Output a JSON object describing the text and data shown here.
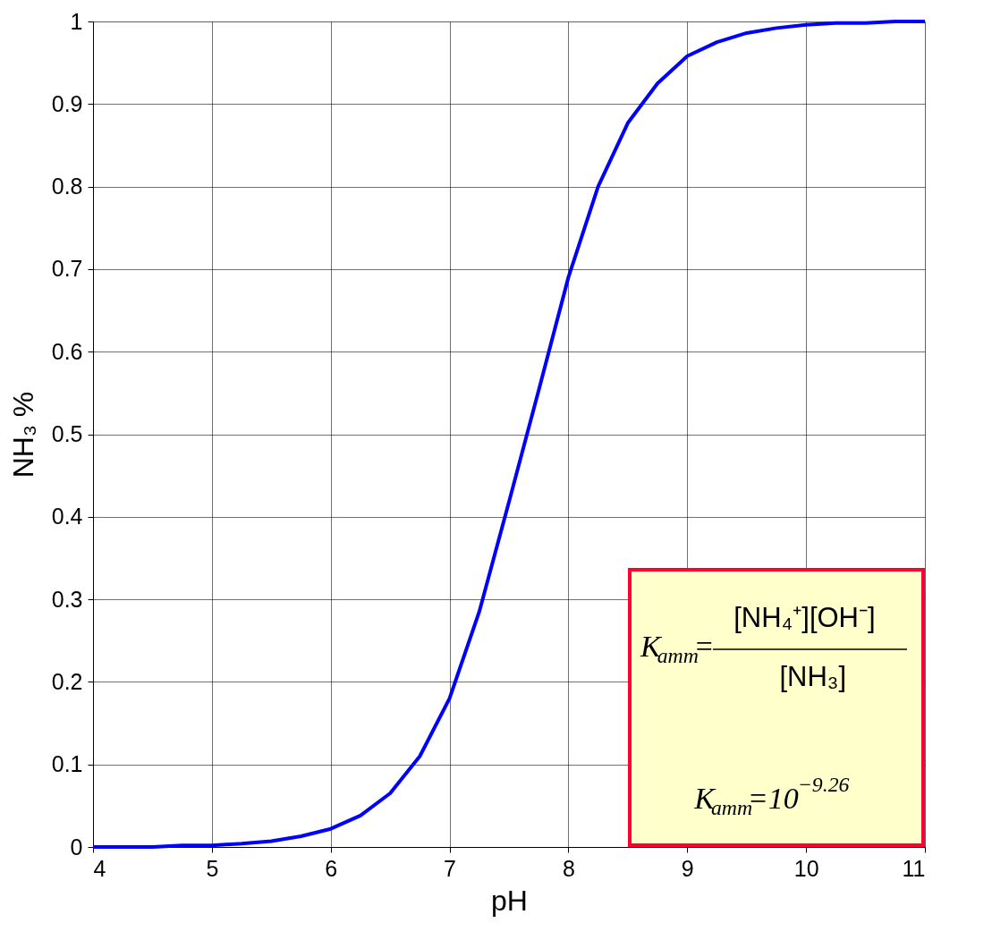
{
  "chart_data": {
    "type": "line",
    "xlabel": "pH",
    "ylabel": "NH₃ %",
    "x": [
      4,
      4.5,
      4.75,
      5.0,
      5.25,
      5.5,
      5.75,
      6.0,
      6.25,
      6.5,
      6.75,
      7.0,
      7.25,
      7.5,
      7.75,
      8.0,
      8.25,
      8.5,
      8.75,
      9.0,
      9.25,
      9.5,
      9.75,
      10.0,
      10.25,
      10.5,
      10.75,
      11
    ],
    "series": [
      {
        "color": "#0000ff",
        "values": [
          0,
          0,
          0.002,
          0.002,
          0.004,
          0.007,
          0.013,
          0.022,
          0.038,
          0.065,
          0.11,
          0.18,
          0.285,
          0.418,
          0.553,
          0.69,
          0.8,
          0.877,
          0.925,
          0.958,
          0.975,
          0.986,
          0.992,
          0.996,
          0.998,
          0.998,
          1.0,
          1.0
        ]
      }
    ],
    "xlim": [
      4,
      11
    ],
    "ylim": [
      0,
      1
    ],
    "xticks": [
      4,
      5,
      6,
      7,
      8,
      9,
      10,
      11
    ],
    "yticks": [
      0,
      0.1,
      0.2,
      0.3,
      0.4,
      0.5,
      0.6,
      0.7,
      0.8,
      0.9,
      1
    ],
    "grid": true,
    "line_style": "solid",
    "marker": "none",
    "annotations": [
      "K$_{amm}$=",
      "[NH₄⁺][OH⁻]",
      "[NH₃]",
      "K$_{amm}$=10$^{−9.26}$"
    ]
  }
}
